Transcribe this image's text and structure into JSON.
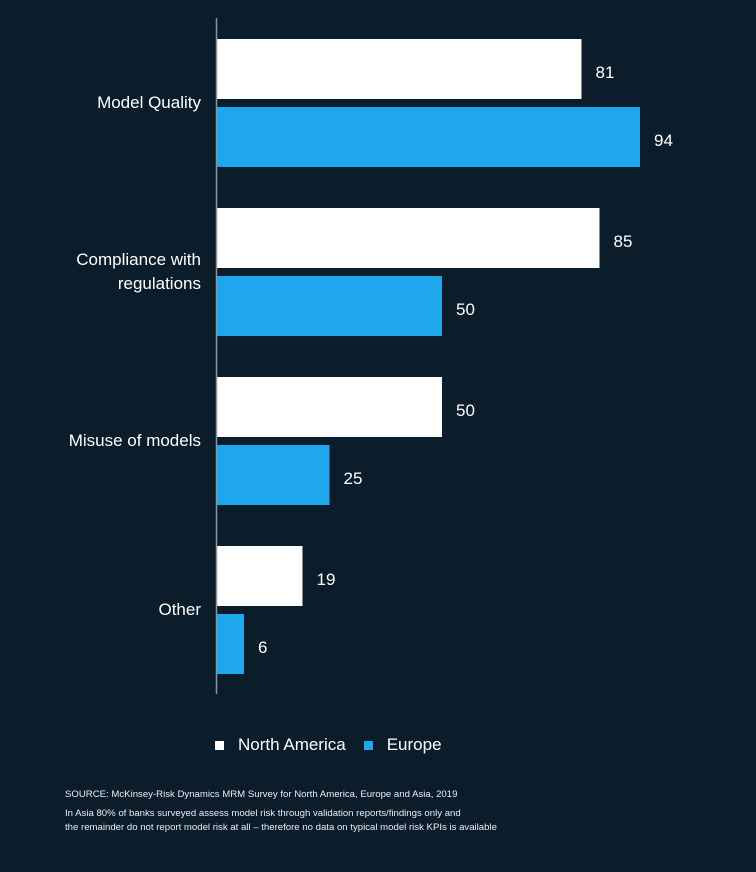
{
  "chart_data": {
    "type": "bar",
    "orientation": "horizontal",
    "categories": [
      [
        "Model Quality"
      ],
      [
        "Compliance with",
        "regulations"
      ],
      [
        "Misuse of models"
      ],
      [
        "Other"
      ]
    ],
    "series": [
      {
        "name": "North America",
        "color": "#ffffff",
        "values": [
          81,
          85,
          50,
          19
        ]
      },
      {
        "name": "Europe",
        "color": "#1ea7ed",
        "values": [
          94,
          50,
          25,
          6
        ]
      }
    ],
    "xlim": [
      0,
      100
    ],
    "grid": false,
    "legend_position": "bottom-left"
  },
  "legend": {
    "north_america": "North America",
    "europe": "Europe"
  },
  "footer": {
    "source": "SOURCE: McKinsey-Risk Dynamics MRM Survey for North America, Europe and Asia, 2019",
    "note_line1": "In Asia 80% of banks surveyed assess model risk through validation reports/findings only and",
    "note_line2": "the remainder do not report model risk at all – therefore no data on typical model risk KPIs is available"
  },
  "colors": {
    "background": "#0b1c2b",
    "axis": "#8a949c"
  }
}
